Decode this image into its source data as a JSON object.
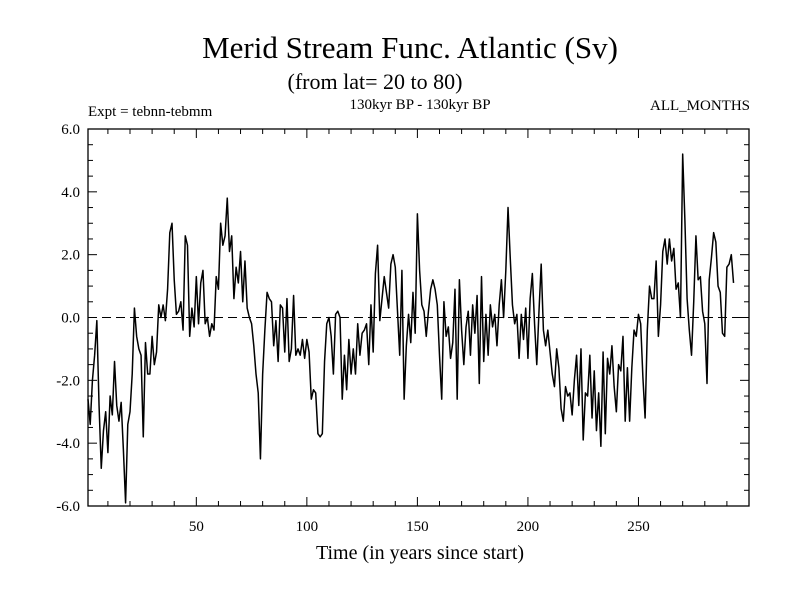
{
  "chart_data": {
    "type": "line",
    "title": "Merid Stream Func. Atlantic (Sv)",
    "subtitle": "(from lat= 20 to 80)",
    "experiment_label": "Expt = tebnn-tebmm",
    "period_label": "130kyr BP - 130kyr BP",
    "months_label": "ALL_MONTHS",
    "xlabel": "Time (in years since start)",
    "ylabel": "",
    "xlim": [
      1,
      300
    ],
    "ylim": [
      -6,
      6
    ],
    "xticks": [
      50,
      100,
      150,
      200,
      250
    ],
    "xtick_labels": [
      "50",
      "100",
      "150",
      "200",
      "250"
    ],
    "yticks": [
      -6,
      -4,
      -2,
      0,
      2,
      4,
      6
    ],
    "ytick_labels": [
      "-6.0",
      "-4.0",
      "-2.0",
      "0.0",
      "2.0",
      "4.0",
      "6.0"
    ],
    "reference_line": 0,
    "series": [
      {
        "name": "Merid Stream Func. Atlantic",
        "points": [
          [
            1,
            -2.6
          ],
          [
            2,
            -3.4
          ],
          [
            3,
            -2.0
          ],
          [
            4,
            -1.2
          ],
          [
            5,
            -0.1
          ],
          [
            6,
            -2.8
          ],
          [
            7,
            -4.8
          ],
          [
            8,
            -3.6
          ],
          [
            9,
            -3.0
          ],
          [
            10,
            -4.3
          ],
          [
            11,
            -2.5
          ],
          [
            12,
            -3.1
          ],
          [
            13,
            -1.4
          ],
          [
            14,
            -2.8
          ],
          [
            15,
            -3.3
          ],
          [
            16,
            -2.7
          ],
          [
            17,
            -4.2
          ],
          [
            18,
            -5.9
          ],
          [
            19,
            -3.4
          ],
          [
            20,
            -3.0
          ],
          [
            21,
            -1.8
          ],
          [
            22,
            0.3
          ],
          [
            23,
            -0.6
          ],
          [
            24,
            -1.0
          ],
          [
            25,
            -1.2
          ],
          [
            26,
            -3.8
          ],
          [
            27,
            -0.8
          ],
          [
            28,
            -1.8
          ],
          [
            29,
            -1.8
          ],
          [
            30,
            -0.6
          ],
          [
            31,
            -1.5
          ],
          [
            32,
            -1.1
          ],
          [
            33,
            0.4
          ],
          [
            34,
            0.0
          ],
          [
            35,
            0.4
          ],
          [
            36,
            -0.1
          ],
          [
            37,
            0.9
          ],
          [
            38,
            2.7
          ],
          [
            39,
            3.0
          ],
          [
            40,
            1.2
          ],
          [
            41,
            0.1
          ],
          [
            42,
            0.2
          ],
          [
            43,
            0.5
          ],
          [
            44,
            -0.4
          ],
          [
            45,
            2.6
          ],
          [
            46,
            2.3
          ],
          [
            47,
            -0.6
          ],
          [
            48,
            0.3
          ],
          [
            49,
            -0.3
          ],
          [
            50,
            1.3
          ],
          [
            51,
            -0.2
          ],
          [
            52,
            1.1
          ],
          [
            53,
            1.5
          ],
          [
            54,
            -0.2
          ],
          [
            55,
            0.0
          ],
          [
            56,
            -0.6
          ],
          [
            57,
            -0.2
          ],
          [
            58,
            -0.4
          ],
          [
            59,
            1.3
          ],
          [
            60,
            0.9
          ],
          [
            61,
            3.0
          ],
          [
            62,
            2.3
          ],
          [
            63,
            2.6
          ],
          [
            64,
            3.8
          ],
          [
            65,
            2.1
          ],
          [
            66,
            2.6
          ],
          [
            67,
            0.6
          ],
          [
            68,
            1.6
          ],
          [
            69,
            1.1
          ],
          [
            70,
            2.1
          ],
          [
            71,
            0.5
          ],
          [
            72,
            1.8
          ],
          [
            73,
            0.3
          ],
          [
            74,
            0.0
          ],
          [
            75,
            -0.2
          ],
          [
            76,
            -0.9
          ],
          [
            77,
            -1.8
          ],
          [
            78,
            -2.4
          ],
          [
            79,
            -4.5
          ],
          [
            80,
            -1.8
          ],
          [
            81,
            -0.4
          ],
          [
            82,
            0.8
          ],
          [
            83,
            0.6
          ],
          [
            84,
            0.5
          ],
          [
            85,
            -0.9
          ],
          [
            86,
            -0.1
          ],
          [
            87,
            -1.4
          ],
          [
            88,
            0.4
          ],
          [
            89,
            0.3
          ],
          [
            90,
            -1.1
          ],
          [
            91,
            0.6
          ],
          [
            92,
            -1.4
          ],
          [
            93,
            -1.0
          ],
          [
            94,
            0.7
          ],
          [
            95,
            -1.2
          ],
          [
            96,
            -1.0
          ],
          [
            97,
            -1.2
          ],
          [
            98,
            -0.7
          ],
          [
            99,
            -1.3
          ],
          [
            100,
            -0.7
          ],
          [
            101,
            -1.1
          ],
          [
            102,
            -2.6
          ],
          [
            103,
            -2.3
          ],
          [
            104,
            -2.4
          ],
          [
            105,
            -3.7
          ],
          [
            106,
            -3.8
          ],
          [
            107,
            -3.7
          ],
          [
            108,
            -1.4
          ],
          [
            109,
            -0.2
          ],
          [
            110,
            0.0
          ],
          [
            111,
            -0.6
          ],
          [
            112,
            -1.8
          ],
          [
            113,
            0.1
          ],
          [
            114,
            0.2
          ],
          [
            115,
            0.0
          ],
          [
            116,
            -2.6
          ],
          [
            117,
            -1.2
          ],
          [
            118,
            -2.3
          ],
          [
            119,
            -0.7
          ],
          [
            120,
            -1.8
          ],
          [
            121,
            -1.0
          ],
          [
            122,
            -1.8
          ],
          [
            123,
            -0.2
          ],
          [
            124,
            -1.2
          ],
          [
            125,
            -0.5
          ],
          [
            126,
            -0.4
          ],
          [
            127,
            -0.2
          ],
          [
            128,
            -1.5
          ],
          [
            129,
            0.4
          ],
          [
            130,
            -1.1
          ],
          [
            131,
            1.4
          ],
          [
            132,
            2.3
          ],
          [
            133,
            -0.1
          ],
          [
            134,
            0.6
          ],
          [
            135,
            1.3
          ],
          [
            136,
            0.8
          ],
          [
            137,
            0.3
          ],
          [
            138,
            1.7
          ],
          [
            139,
            2.0
          ],
          [
            140,
            1.6
          ],
          [
            141,
            0.2
          ],
          [
            142,
            -1.2
          ],
          [
            143,
            1.5
          ],
          [
            144,
            -2.6
          ],
          [
            145,
            -0.9
          ],
          [
            146,
            0.1
          ],
          [
            147,
            -0.8
          ],
          [
            148,
            0.8
          ],
          [
            149,
            -0.5
          ],
          [
            150,
            3.3
          ],
          [
            151,
            1.5
          ],
          [
            152,
            0.4
          ],
          [
            153,
            0.2
          ],
          [
            154,
            -0.6
          ],
          [
            155,
            0.2
          ],
          [
            156,
            0.9
          ],
          [
            157,
            1.2
          ],
          [
            158,
            0.9
          ],
          [
            159,
            0.4
          ],
          [
            160,
            -1.2
          ],
          [
            161,
            -2.6
          ],
          [
            162,
            0.5
          ],
          [
            163,
            -0.6
          ],
          [
            164,
            -0.3
          ],
          [
            165,
            -1.3
          ],
          [
            166,
            -0.8
          ],
          [
            167,
            0.9
          ],
          [
            168,
            -2.6
          ],
          [
            169,
            1.2
          ],
          [
            170,
            -0.4
          ],
          [
            171,
            -1.5
          ],
          [
            172,
            -0.3
          ],
          [
            173,
            0.2
          ],
          [
            174,
            -1.2
          ],
          [
            175,
            0.4
          ],
          [
            176,
            -0.5
          ],
          [
            177,
            0.7
          ],
          [
            178,
            -2.1
          ],
          [
            179,
            1.3
          ],
          [
            180,
            -1.4
          ],
          [
            181,
            0.1
          ],
          [
            182,
            -1.2
          ],
          [
            183,
            0.4
          ],
          [
            184,
            -0.3
          ],
          [
            185,
            0.1
          ],
          [
            186,
            -0.9
          ],
          [
            187,
            0.4
          ],
          [
            188,
            1.2
          ],
          [
            189,
            0.0
          ],
          [
            190,
            1.5
          ],
          [
            191,
            3.5
          ],
          [
            192,
            1.9
          ],
          [
            193,
            0.4
          ],
          [
            194,
            -0.2
          ],
          [
            195,
            0.1
          ],
          [
            196,
            -1.3
          ],
          [
            197,
            0.1
          ],
          [
            198,
            -0.7
          ],
          [
            199,
            0.3
          ],
          [
            200,
            -1.3
          ],
          [
            201,
            0.6
          ],
          [
            202,
            1.4
          ],
          [
            203,
            -0.2
          ],
          [
            204,
            -1.5
          ],
          [
            205,
            0.2
          ],
          [
            206,
            1.7
          ],
          [
            207,
            -0.4
          ],
          [
            208,
            -0.9
          ],
          [
            209,
            -0.4
          ],
          [
            210,
            -1.1
          ],
          [
            211,
            -1.8
          ],
          [
            212,
            -2.2
          ],
          [
            213,
            -1.0
          ],
          [
            214,
            -1.6
          ],
          [
            215,
            -2.9
          ],
          [
            216,
            -3.3
          ],
          [
            217,
            -2.2
          ],
          [
            218,
            -2.5
          ],
          [
            219,
            -2.4
          ],
          [
            220,
            -3.1
          ],
          [
            221,
            -2.0
          ],
          [
            222,
            -1.2
          ],
          [
            223,
            -2.8
          ],
          [
            224,
            -1.0
          ],
          [
            225,
            -3.9
          ],
          [
            226,
            -2.4
          ],
          [
            227,
            -2.5
          ],
          [
            228,
            -1.2
          ],
          [
            229,
            -3.2
          ],
          [
            230,
            -1.7
          ],
          [
            231,
            -3.6
          ],
          [
            232,
            -2.4
          ],
          [
            233,
            -4.1
          ],
          [
            234,
            -1.1
          ],
          [
            235,
            -3.7
          ],
          [
            236,
            -1.3
          ],
          [
            237,
            -1.8
          ],
          [
            238,
            -0.9
          ],
          [
            239,
            -2.2
          ],
          [
            240,
            -3.0
          ],
          [
            241,
            -1.5
          ],
          [
            242,
            -1.7
          ],
          [
            243,
            -0.6
          ],
          [
            244,
            -3.3
          ],
          [
            245,
            -1.6
          ],
          [
            246,
            -3.3
          ],
          [
            247,
            -1.6
          ],
          [
            248,
            -0.4
          ],
          [
            249,
            -0.6
          ],
          [
            250,
            0.1
          ],
          [
            251,
            -0.2
          ],
          [
            252,
            -1.9
          ],
          [
            253,
            -3.2
          ],
          [
            254,
            -0.4
          ],
          [
            255,
            1.0
          ],
          [
            256,
            0.6
          ],
          [
            257,
            0.6
          ],
          [
            258,
            1.8
          ],
          [
            259,
            -0.6
          ],
          [
            260,
            0.4
          ],
          [
            261,
            2.1
          ],
          [
            262,
            2.5
          ],
          [
            263,
            1.7
          ],
          [
            264,
            2.5
          ],
          [
            265,
            1.8
          ],
          [
            266,
            2.2
          ],
          [
            267,
            0.9
          ],
          [
            268,
            1.1
          ],
          [
            269,
            0.0
          ],
          [
            270,
            5.2
          ],
          [
            271,
            3.1
          ],
          [
            272,
            0.6
          ],
          [
            273,
            -0.4
          ],
          [
            274,
            -1.2
          ],
          [
            275,
            0.5
          ],
          [
            276,
            2.6
          ],
          [
            277,
            1.2
          ],
          [
            278,
            1.3
          ],
          [
            279,
            0.2
          ],
          [
            280,
            -0.2
          ],
          [
            281,
            -2.1
          ],
          [
            282,
            1.2
          ],
          [
            283,
            1.9
          ],
          [
            284,
            2.7
          ],
          [
            285,
            2.4
          ],
          [
            286,
            1.0
          ],
          [
            287,
            0.8
          ],
          [
            288,
            -0.5
          ],
          [
            289,
            -0.6
          ],
          [
            290,
            1.6
          ],
          [
            291,
            1.7
          ],
          [
            292,
            2.0
          ],
          [
            293,
            1.1
          ]
        ]
      }
    ]
  }
}
